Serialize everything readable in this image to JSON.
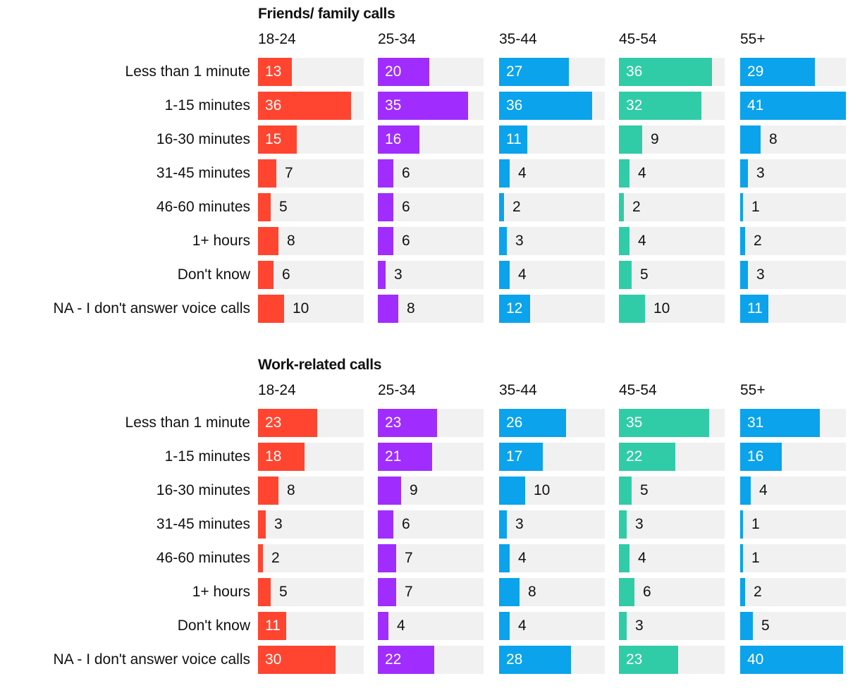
{
  "chart_data": [
    {
      "type": "bar",
      "orientation": "horizontal",
      "title": "Friends/ family calls",
      "categories": [
        "Less than 1 minute",
        "1-15 minutes",
        "16-30 minutes",
        "31-45 minutes",
        "46-60 minutes",
        "1+ hours",
        "Don't know",
        "NA - I don't answer voice calls"
      ],
      "xlim": [
        0,
        41
      ],
      "series": [
        {
          "name": "18-24",
          "color": "#ff4530",
          "values": [
            13,
            36,
            15,
            7,
            5,
            8,
            6,
            10
          ]
        },
        {
          "name": "25-34",
          "color": "#a02dfe",
          "values": [
            20,
            35,
            16,
            6,
            6,
            6,
            3,
            8
          ]
        },
        {
          "name": "35-44",
          "color": "#0aa3ec",
          "values": [
            27,
            36,
            11,
            4,
            2,
            3,
            4,
            12
          ]
        },
        {
          "name": "45-54",
          "color": "#2fcca7",
          "values": [
            36,
            32,
            9,
            4,
            2,
            4,
            5,
            10
          ]
        },
        {
          "name": "55+",
          "color": "#0aa3ec",
          "values": [
            29,
            41,
            8,
            3,
            1,
            2,
            3,
            11
          ]
        }
      ]
    },
    {
      "type": "bar",
      "orientation": "horizontal",
      "title": "Work-related calls",
      "categories": [
        "Less than 1 minute",
        "1-15 minutes",
        "16-30 minutes",
        "31-45 minutes",
        "46-60 minutes",
        "1+ hours",
        "Don't know",
        "NA - I don't answer voice calls"
      ],
      "xlim": [
        0,
        41
      ],
      "series": [
        {
          "name": "18-24",
          "color": "#ff4530",
          "values": [
            23,
            18,
            8,
            3,
            2,
            5,
            11,
            30
          ]
        },
        {
          "name": "25-34",
          "color": "#a02dfe",
          "values": [
            23,
            21,
            9,
            6,
            7,
            7,
            4,
            22
          ]
        },
        {
          "name": "35-44",
          "color": "#0aa3ec",
          "values": [
            26,
            17,
            10,
            3,
            4,
            8,
            4,
            28
          ]
        },
        {
          "name": "45-54",
          "color": "#2fcca7",
          "values": [
            35,
            22,
            5,
            3,
            4,
            6,
            3,
            23
          ]
        },
        {
          "name": "55+",
          "color": "#0aa3ec",
          "values": [
            31,
            16,
            4,
            1,
            1,
            2,
            5,
            40
          ]
        }
      ]
    }
  ]
}
